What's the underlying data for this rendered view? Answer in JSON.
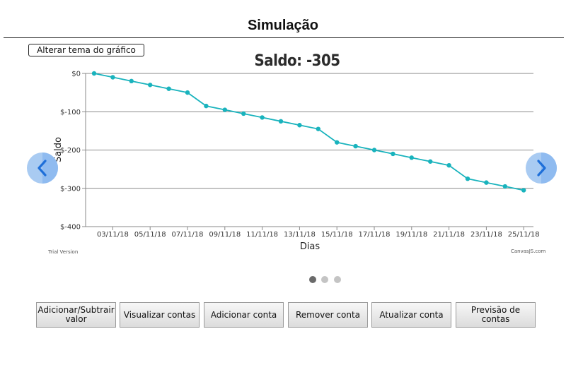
{
  "page": {
    "title": "Simulação"
  },
  "theme_button": {
    "label": "Alterar tema do gráfico"
  },
  "chart_data": {
    "type": "line",
    "title": "Saldo: -305",
    "xlabel": "Dias",
    "ylabel": "Saldo",
    "ylim": [
      -400,
      0
    ],
    "y_ticks": [
      0,
      -100,
      -200,
      -300,
      -400
    ],
    "y_tick_labels": [
      "$0",
      "$-100",
      "$-200",
      "$-300",
      "$-400"
    ],
    "x_tick_labels": [
      "03/11/18",
      "05/11/18",
      "07/11/18",
      "09/11/18",
      "11/11/18",
      "13/11/18",
      "15/11/18",
      "17/11/18",
      "19/11/18",
      "21/11/18",
      "23/11/18",
      "25/11/18"
    ],
    "grid": true,
    "color": "#19b3bd",
    "series": [
      {
        "x": [
          "02/11/18",
          "03/11/18",
          "04/11/18",
          "05/11/18",
          "06/11/18",
          "07/11/18",
          "08/11/18",
          "09/11/18",
          "10/11/18",
          "11/11/18",
          "12/11/18",
          "13/11/18",
          "14/11/18",
          "15/11/18",
          "16/11/18",
          "17/11/18",
          "18/11/18",
          "19/11/18",
          "20/11/18",
          "21/11/18",
          "22/11/18",
          "23/11/18",
          "24/11/18",
          "25/11/18"
        ],
        "values": [
          0,
          -10,
          -20,
          -30,
          -40,
          -50,
          -85,
          -95,
          -105,
          -115,
          -125,
          -135,
          -145,
          -180,
          -190,
          -200,
          -210,
          -220,
          -230,
          -240,
          -275,
          -285,
          -295,
          -305
        ]
      }
    ]
  },
  "carousel": {
    "prev_icon": "chevron-left-icon",
    "next_icon": "chevron-right-icon",
    "dot_count": 3,
    "active_index": 0,
    "arrow_color": "#a9cbf2",
    "arrow_glyph_color": "#1e6fd9"
  },
  "watermarks": {
    "left": "Trial Version",
    "right": "CanvasJS.com"
  },
  "actions": [
    {
      "label": "Adicionar/Subtrair valor"
    },
    {
      "label": "Visualizar contas"
    },
    {
      "label": "Adicionar conta"
    },
    {
      "label": "Remover conta"
    },
    {
      "label": "Atualizar conta"
    },
    {
      "label": "Previsão de contas"
    }
  ]
}
